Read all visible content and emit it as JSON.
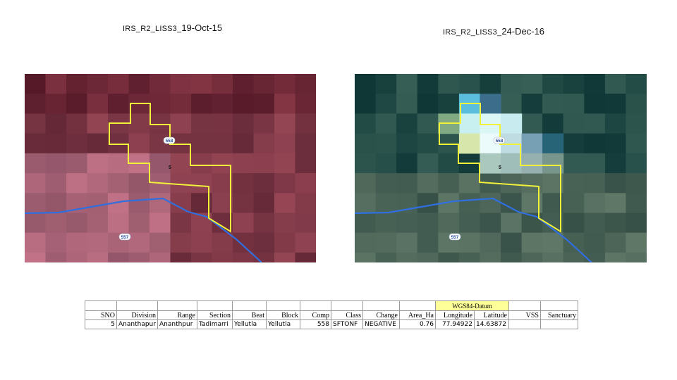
{
  "left_panel": {
    "caption_prefix": "IRS_R2_LISS3_",
    "caption_date": "19-Oct-15",
    "labels": {
      "road_top": "558",
      "road_bottom": "557",
      "compartment": "5"
    }
  },
  "right_panel": {
    "caption_prefix": "IRS_R2_LISS3_",
    "caption_date": "24-Dec-16",
    "labels": {
      "road_top": "558",
      "road_bottom": "557",
      "compartment": "5"
    }
  },
  "table": {
    "group_header": "WGS84-Datum",
    "headers": {
      "sno": "SNO",
      "division": "Division",
      "range": "Range",
      "section": "Section",
      "beat": "Beat",
      "block": "Block",
      "comp": "Comp",
      "class": "Class",
      "change": "Change",
      "area": "Area_Ha",
      "longitude": "Longitude",
      "latitude": "Latitude",
      "vss": "VSS",
      "sanctuary": "Sanctuary"
    },
    "row": {
      "sno": "5",
      "division": "Ananthapur",
      "range": "Ananthpur",
      "section": "Tadimarri",
      "beat": "Yellutla",
      "block": "Yellutla",
      "comp": "558",
      "class": "SFTONF",
      "change": "NEGATIVE",
      "area": "0.76",
      "longitude": "77.94922",
      "latitude": "14.63872",
      "vss": "",
      "sanctuary": ""
    }
  },
  "colors": {
    "boundary": "#f2f23a",
    "road": "#2f6fe0",
    "wgs_highlight": "#ffff99",
    "left_base": "#7a3a48",
    "right_base": "#1d3e3a"
  }
}
